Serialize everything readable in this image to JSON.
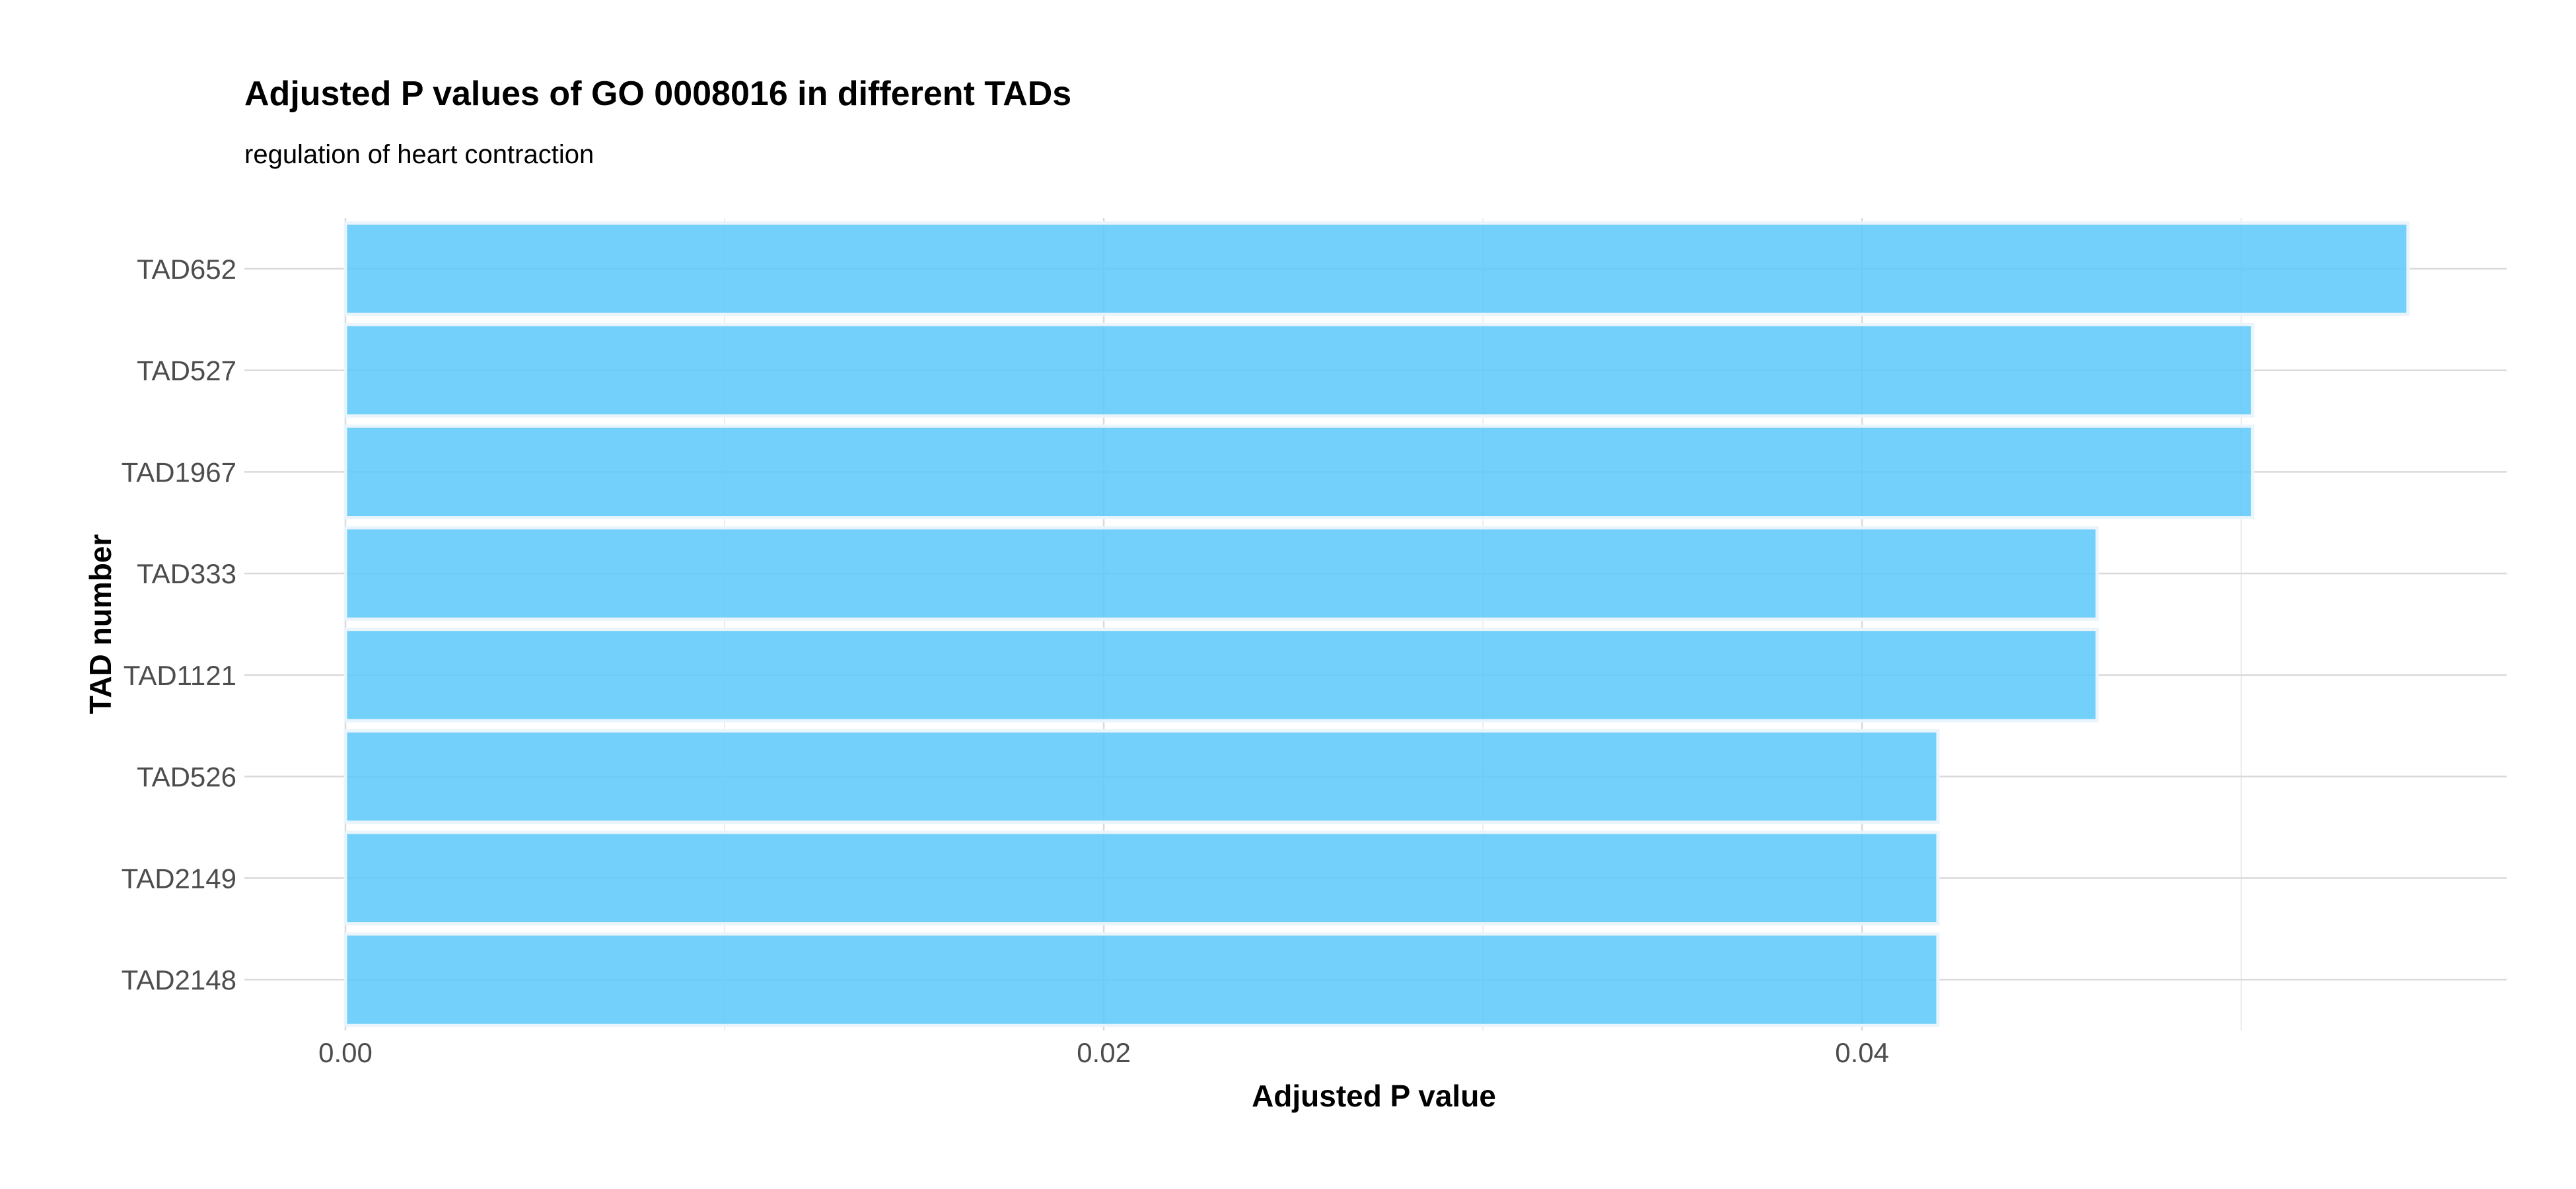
{
  "chart_data": {
    "type": "bar",
    "orientation": "horizontal",
    "title": "Adjusted P values of GO 0008016 in different TADs",
    "subtitle": "regulation of heart contraction",
    "xlabel": "Adjusted P value",
    "ylabel": "TAD number",
    "categories": [
      "TAD652",
      "TAD527",
      "TAD1967",
      "TAD333",
      "TAD1121",
      "TAD526",
      "TAD2149",
      "TAD2148"
    ],
    "values": [
      0.0544,
      0.0503,
      0.0503,
      0.0462,
      0.0462,
      0.042,
      0.042,
      0.042
    ],
    "xlim": [
      0,
      0.057
    ],
    "xticks": [
      0.0,
      0.02,
      0.04
    ],
    "xtick_labels": [
      "0.00",
      "0.02",
      "0.04"
    ],
    "grid": true,
    "bar_color": "#5BC8FA",
    "bar_edge_color": "#EAF4FB"
  }
}
